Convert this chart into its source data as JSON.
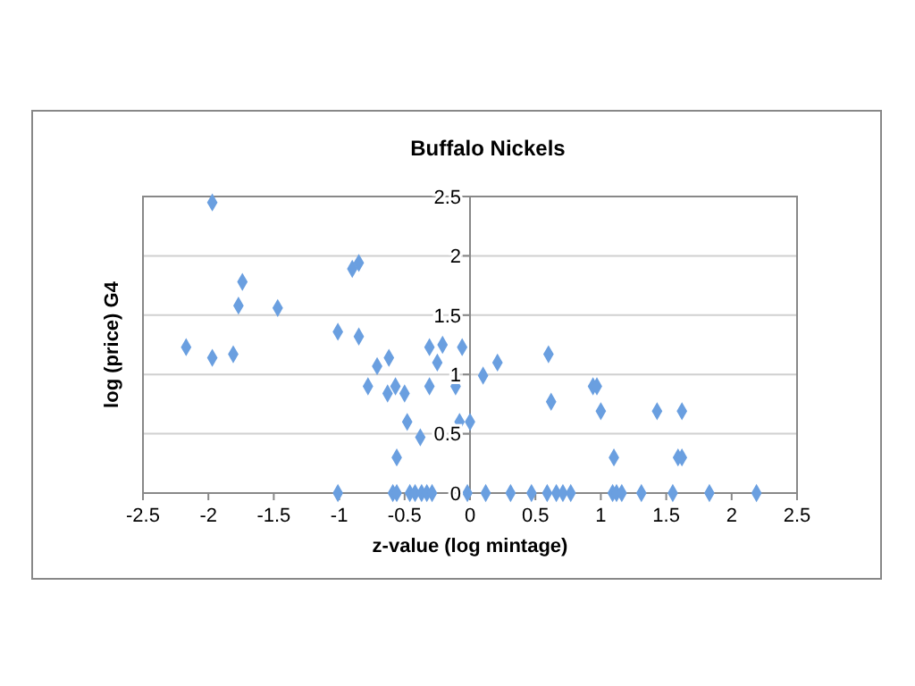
{
  "chart_data": {
    "type": "scatter",
    "title": "Buffalo Nickels",
    "xlabel": "z-value (log mintage)",
    "ylabel": "log (price) G4",
    "x": [
      -2.17,
      -1.97,
      -1.97,
      -1.81,
      -1.77,
      -1.74,
      -1.47,
      -1.01,
      -0.9,
      -0.85,
      -0.85,
      -0.78,
      -0.71,
      -0.63,
      -0.62,
      -0.57,
      -0.56,
      -0.5,
      -0.48,
      -0.38,
      -0.31,
      -0.31,
      -0.25,
      -0.21,
      -0.06,
      -0.11,
      -0.08,
      0.0,
      0.1,
      0.21,
      0.6,
      0.62,
      0.94,
      0.97,
      1.0,
      1.1,
      1.43,
      1.59,
      1.62,
      1.62,
      -1.01,
      -0.59,
      -0.56,
      -0.46,
      -0.42,
      -0.37,
      -0.33,
      -0.29,
      -0.02,
      0.12,
      0.31,
      0.47,
      0.59,
      0.66,
      0.71,
      0.77,
      1.09,
      1.12,
      1.16,
      1.31,
      1.55,
      1.83,
      2.19
    ],
    "values": [
      1.23,
      2.45,
      1.14,
      1.17,
      1.58,
      1.78,
      1.56,
      1.36,
      1.89,
      1.94,
      1.32,
      0.9,
      1.07,
      0.84,
      1.14,
      0.9,
      0.3,
      0.84,
      0.6,
      0.47,
      1.23,
      0.9,
      1.1,
      1.25,
      1.23,
      0.9,
      0.6,
      0.6,
      0.99,
      1.1,
      1.17,
      0.77,
      0.9,
      0.9,
      0.69,
      0.3,
      0.69,
      0.3,
      0.3,
      0.69,
      0,
      0,
      0,
      0,
      0,
      0,
      0,
      0,
      0,
      0,
      0,
      0,
      0,
      0,
      0,
      0,
      0,
      0,
      0,
      0,
      0,
      0,
      0
    ],
    "color": "#6a9fe0",
    "marker": "diamond",
    "grid": "y",
    "xlim": [
      -2.5,
      2.5
    ],
    "xticks": [
      -2.5,
      -2,
      -1.5,
      -1,
      -0.5,
      0,
      0.5,
      1,
      1.5,
      2,
      2.5
    ],
    "ylim": [
      0,
      2.5
    ],
    "yticks": [
      0,
      0.5,
      1,
      1.5,
      2,
      2.5
    ]
  }
}
